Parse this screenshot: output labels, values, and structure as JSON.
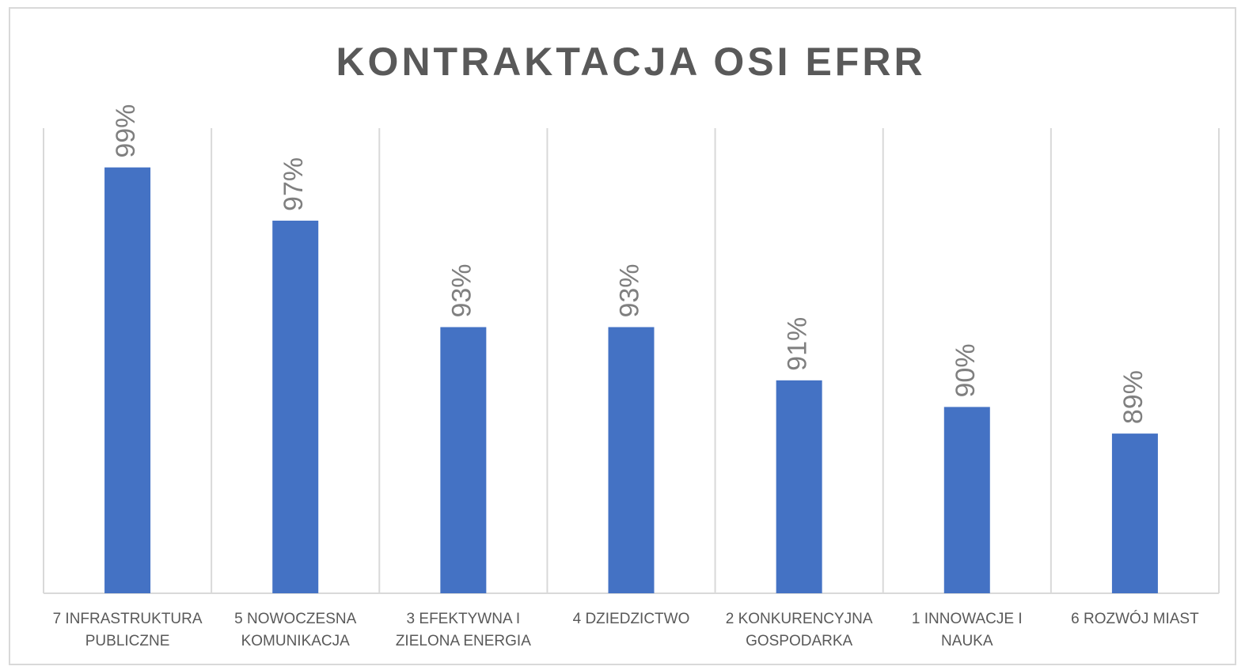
{
  "chart_data": {
    "type": "bar",
    "title": "KONTRAKTACJA  OSI  EFRR",
    "categories": [
      [
        "7 INFRASTRUKTURA",
        "PUBLICZNE"
      ],
      [
        "5 NOWOCZESNA",
        "KOMUNIKACJA"
      ],
      [
        "3 EFEKTYWNA I",
        "ZIELONA ENERGIA"
      ],
      [
        "4 DZIEDZICTWO"
      ],
      [
        "2 KONKURENCYJNA",
        "GOSPODARKA"
      ],
      [
        "1 INNOWACJE I",
        "NAUKA"
      ],
      [
        "6 ROZWÓJ  MIAST"
      ]
    ],
    "values": [
      99,
      97,
      93,
      93,
      91,
      90,
      89
    ],
    "value_labels": [
      "99%",
      "97%",
      "93%",
      "93%",
      "91%",
      "90%",
      "89%"
    ],
    "color": "#4472c4",
    "ylim": [
      83,
      100
    ]
  }
}
